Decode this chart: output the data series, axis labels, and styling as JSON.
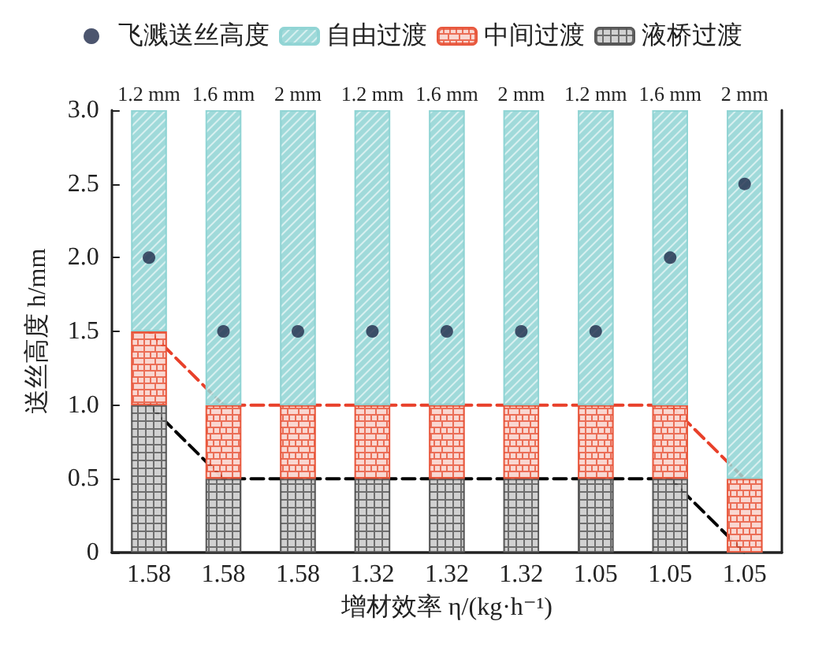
{
  "chart_data": {
    "type": "bar",
    "stacked": true,
    "xlabel": "增材效率 η/(kg·h⁻¹)",
    "ylabel": "送丝高度 h/mm",
    "categories": [
      "1.58",
      "1.58",
      "1.58",
      "1.32",
      "1.32",
      "1.32",
      "1.05",
      "1.05",
      "1.05"
    ],
    "series": [
      {
        "name": "液桥过渡",
        "color": "#555555",
        "values": [
          1.0,
          0.5,
          0.5,
          0.5,
          0.5,
          0.5,
          0.5,
          0.5,
          0
        ]
      },
      {
        "name": "中间过渡",
        "color": "#e8553a",
        "values": [
          0.5,
          0.5,
          0.5,
          0.5,
          0.5,
          0.5,
          0.5,
          0.5,
          0.5
        ]
      },
      {
        "name": "自由过渡",
        "color": "#8fd3d3",
        "values": [
          1.5,
          2.0,
          2.0,
          2.0,
          2.0,
          2.0,
          2.0,
          2.0,
          2.5
        ]
      },
      {
        "type": "scatter",
        "name": "飞溅送丝高度",
        "color": "#1f2a4a",
        "marker": "circle",
        "values": [
          2.0,
          1.5,
          1.5,
          1.5,
          1.5,
          1.5,
          1.5,
          2.0,
          2.5
        ]
      },
      {
        "type": "line",
        "color": "#e8402a",
        "line_style": "dashed",
        "values": [
          1.5,
          1.0,
          1.0,
          1.0,
          1.0,
          1.0,
          1.0,
          1.0,
          0.5
        ]
      },
      {
        "type": "line",
        "color": "#000000",
        "line_style": "dashed",
        "values": [
          1.0,
          0.5,
          0.5,
          0.5,
          0.5,
          0.5,
          0.5,
          0.5,
          0
        ]
      }
    ],
    "annotations": [
      "1.2 mm",
      "1.6 mm",
      "2 mm",
      "1.2 mm",
      "1.6 mm",
      "2 mm",
      "1.2 mm",
      "1.6 mm",
      "2 mm"
    ],
    "ylim": [
      0,
      3.0
    ],
    "yticks": [
      "0",
      0.5,
      "1.0",
      1.5,
      "2.0",
      2.5,
      "3.0"
    ],
    "grid": false,
    "legend": "top"
  }
}
